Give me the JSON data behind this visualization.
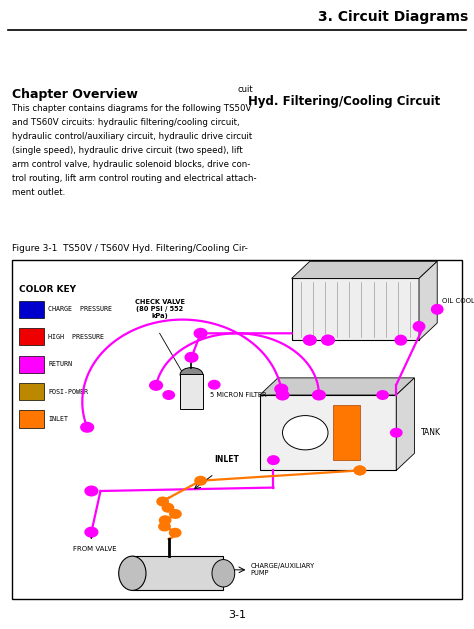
{
  "page_title": "3. Circuit Diagrams",
  "chapter_title": "Chapter Overview",
  "chapter_text_line1": "This chapter contains diagrams for the following TS50V",
  "chapter_text_line2": "and TS60V circuits: hydraulic filtering/cooling circuit,",
  "chapter_text_line3": "hydraulic control/auxiliary circuit, hydraulic drive circuit",
  "chapter_text_line4": "(single speed), hydraulic drive circuit (two speed), lift",
  "chapter_text_line5": "arm control valve, hydraulic solenoid blocks, drive con-",
  "chapter_text_line6": "trol routing, lift arm control routing and electrical attach-",
  "chapter_text_line7": "ment outlet.",
  "cuit_label": "cuit",
  "section_title": "Hyd. Filtering/Cooling Circuit",
  "figure_caption": "Figure 3-1  TS50V / TS60V Hyd. Filtering/Cooling Cir-",
  "color_key_title": "COLOR KEY",
  "color_key": [
    {
      "color": "#0000CC",
      "label": "CHARGE  PRESSURE"
    },
    {
      "color": "#EE0000",
      "label": "HIGH  PRESSURE"
    },
    {
      "color": "#FF00FF",
      "label": "RETURN"
    },
    {
      "color": "#BB8800",
      "label": "POSI-POWER"
    },
    {
      "color": "#FF7700",
      "label": "INLET"
    }
  ],
  "check_valve_label": "CHECK VALVE\n(80 PSI / 552\nkPa)",
  "oil_cooler_label": "OIL COOLER",
  "filter_label": "5 MICRON FILTER",
  "tank_label": "TANK",
  "inlet_label": "INLET",
  "from_valve_label": "FROM VALVE",
  "pump_label": "CHARGE/AUXILIARY\nPUMP",
  "page_number": "3-1",
  "bg_color": "#FFFFFF",
  "text_color": "#000000",
  "magenta": "#FF00FF",
  "orange": "#FF7700"
}
